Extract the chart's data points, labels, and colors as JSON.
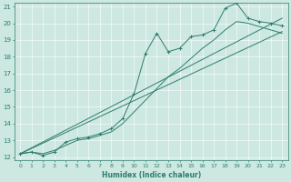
{
  "xlabel": "Humidex (Indice chaleur)",
  "xlim": [
    -0.5,
    23.5
  ],
  "ylim": [
    11.8,
    21.2
  ],
  "xticks": [
    0,
    1,
    2,
    3,
    4,
    5,
    6,
    7,
    8,
    9,
    10,
    11,
    12,
    13,
    14,
    15,
    16,
    17,
    18,
    19,
    20,
    21,
    22,
    23
  ],
  "yticks": [
    12,
    13,
    14,
    15,
    16,
    17,
    18,
    19,
    20,
    21
  ],
  "bg_color": "#cce8e0",
  "line_color": "#2e7d6e",
  "grid_color": "#ffffff",
  "lines": [
    {
      "x": [
        0,
        1,
        2,
        3,
        4,
        5,
        6,
        7,
        8,
        9,
        10,
        11,
        12,
        13,
        14,
        15,
        16,
        17,
        18,
        19,
        20,
        21,
        22,
        23
      ],
      "y": [
        12.2,
        12.3,
        12.1,
        12.3,
        12.9,
        13.1,
        13.2,
        13.4,
        13.7,
        14.3,
        15.8,
        18.2,
        19.4,
        18.3,
        18.5,
        19.2,
        19.3,
        19.6,
        20.9,
        21.2,
        20.3,
        20.1,
        20.0,
        19.85
      ],
      "has_markers": true
    },
    {
      "x": [
        0,
        1,
        2,
        3,
        4,
        5,
        6,
        7,
        8,
        9,
        10,
        11,
        12,
        13,
        14,
        15,
        16,
        17,
        18,
        19,
        20,
        21,
        22,
        23
      ],
      "y": [
        12.2,
        12.3,
        12.2,
        12.4,
        12.7,
        13.0,
        13.1,
        13.3,
        13.5,
        14.0,
        14.7,
        15.4,
        16.1,
        16.8,
        17.3,
        17.9,
        18.5,
        19.0,
        19.6,
        20.1,
        20.0,
        19.8,
        19.6,
        19.4
      ],
      "has_markers": false
    },
    {
      "x": [
        0,
        23
      ],
      "y": [
        12.2,
        19.5
      ],
      "has_markers": false
    },
    {
      "x": [
        0,
        23
      ],
      "y": [
        12.2,
        20.3
      ],
      "has_markers": false
    }
  ]
}
